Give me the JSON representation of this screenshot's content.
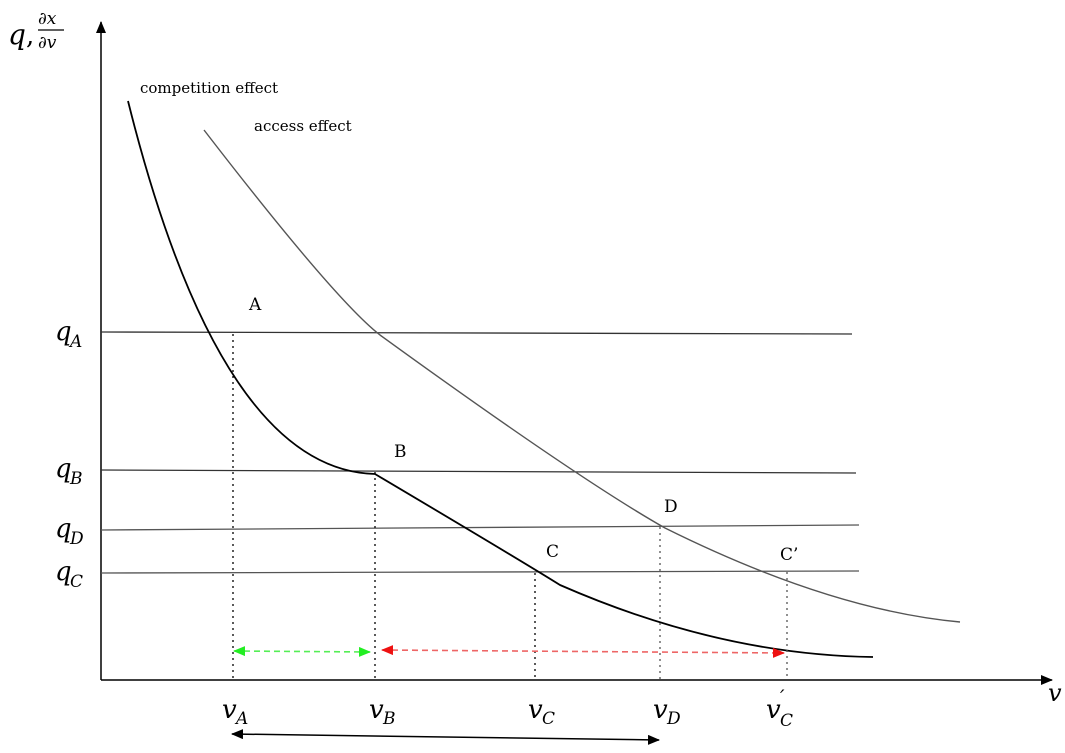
{
  "axes": {
    "y_label_var": "q",
    "y_label_sep": ",",
    "y_label_frac_num": "∂x",
    "y_label_frac_den": "∂v",
    "x_label": "v"
  },
  "curves": {
    "competition_label": "competition effect",
    "access_label": "access effect"
  },
  "points": {
    "A": "A",
    "B": "B",
    "C": "C",
    "D": "D",
    "C_prime": "C’"
  },
  "y_ticks": {
    "qA_base": "q",
    "qA_sub": "A",
    "qB_base": "q",
    "qB_sub": "B",
    "qD_base": "q",
    "qD_sub": "D",
    "qC_base": "q",
    "qC_sub": "C"
  },
  "x_ticks": {
    "vA_base": "v",
    "vA_sub": "A",
    "vB_base": "v",
    "vB_sub": "B",
    "vC_base": "v",
    "vC_sub": "C",
    "vD_base": "v",
    "vD_sub": "D",
    "vCp_base": "v",
    "vCp_sup": "′",
    "vCp_sub": "C"
  },
  "colors": {
    "axis": "#000000",
    "competition_curve": "#000000",
    "access_curve": "#555555",
    "horizontal_line": "#444444",
    "green_arrow": "#33ee33",
    "red_arrow": "#ee2222",
    "bottom_arrow": "#000000"
  }
}
